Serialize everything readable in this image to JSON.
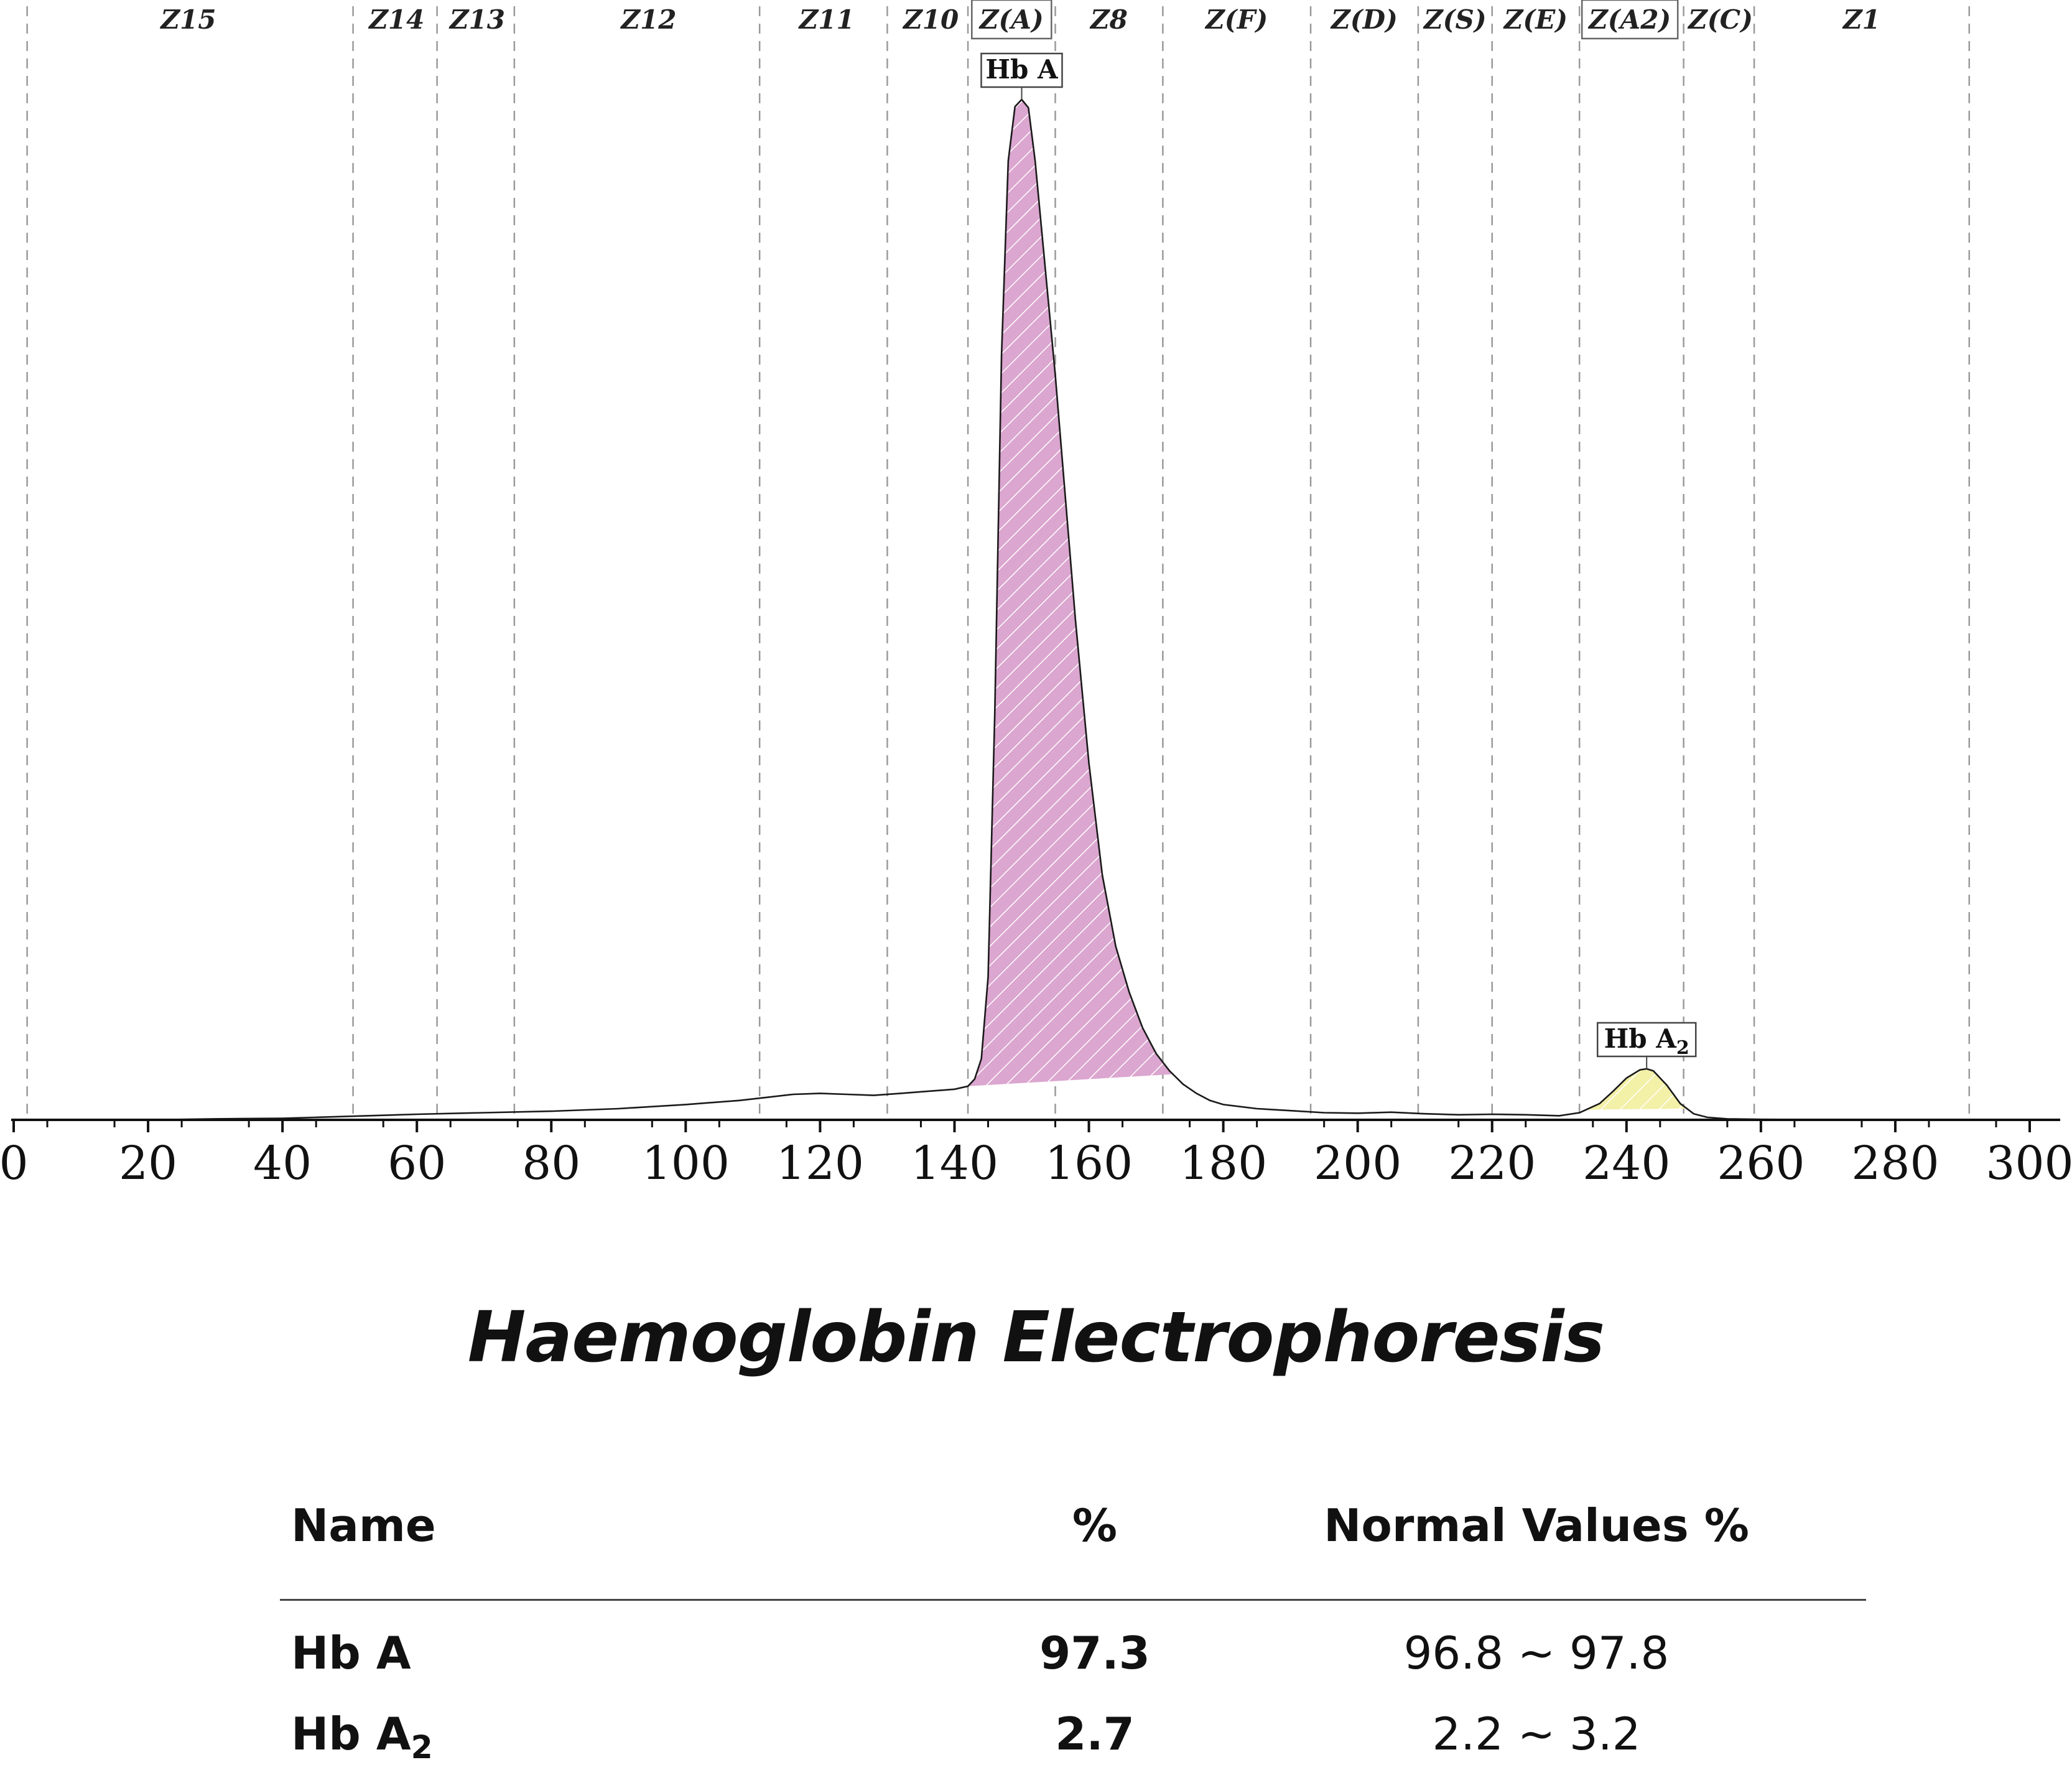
{
  "chart_data": {
    "type": "area",
    "title": "",
    "xlabel": "",
    "ylabel": "",
    "xlim": [
      0,
      300
    ],
    "ylim": [
      0,
      100
    ],
    "x_ticks": [
      0,
      20,
      40,
      60,
      80,
      100,
      120,
      140,
      160,
      180,
      200,
      220,
      240,
      260,
      280,
      300
    ],
    "x_tick_labels": [
      "0",
      "20",
      "40",
      "60",
      "80",
      "100",
      "120",
      "140",
      "160",
      "180",
      "200",
      "220",
      "240",
      "260",
      "280",
      "300"
    ],
    "zone_boundaries": [
      2,
      50.5,
      63,
      74.5,
      111,
      130,
      142,
      155,
      171,
      193,
      209,
      220,
      233,
      248.5,
      259,
      291
    ],
    "zones": [
      {
        "label": "Z15",
        "x": 26,
        "boxed": false
      },
      {
        "label": "Z14",
        "x": 57,
        "boxed": false
      },
      {
        "label": "Z13",
        "x": 69,
        "boxed": false
      },
      {
        "label": "Z12",
        "x": 94.5,
        "boxed": false
      },
      {
        "label": "Z11",
        "x": 121,
        "boxed": false
      },
      {
        "label": "Z10",
        "x": 136.5,
        "boxed": false
      },
      {
        "label": "Z(A)",
        "x": 148.5,
        "boxed": true
      },
      {
        "label": "Z8",
        "x": 163,
        "boxed": false
      },
      {
        "label": "Z(F)",
        "x": 182,
        "boxed": false
      },
      {
        "label": "Z(D)",
        "x": 201,
        "boxed": false
      },
      {
        "label": "Z(S)",
        "x": 214.5,
        "boxed": false
      },
      {
        "label": "Z(E)",
        "x": 226.5,
        "boxed": false
      },
      {
        "label": "Z(A2)",
        "x": 240.5,
        "boxed": true
      },
      {
        "label": "Z(C)",
        "x": 254,
        "boxed": false
      },
      {
        "label": "Z1",
        "x": 275,
        "boxed": false
      }
    ],
    "trace": {
      "x": [
        0,
        20,
        30,
        40,
        50,
        60,
        70,
        80,
        90,
        100,
        108,
        112,
        116,
        120,
        124,
        128,
        132,
        136,
        140,
        142,
        143,
        144,
        145,
        146,
        147,
        148,
        149,
        150,
        151,
        152,
        153,
        154,
        155,
        156,
        157,
        158,
        159,
        160,
        162,
        164,
        166,
        168,
        170,
        172,
        174,
        176,
        178,
        180,
        185,
        190,
        195,
        200,
        205,
        210,
        215,
        220,
        225,
        230,
        233,
        236,
        238,
        240,
        242,
        243,
        244,
        246,
        248,
        250,
        252,
        255,
        260,
        280,
        300
      ],
      "y": [
        0,
        0,
        0.1,
        0.15,
        0.35,
        0.55,
        0.7,
        0.85,
        1.1,
        1.5,
        1.9,
        2.2,
        2.5,
        2.6,
        2.5,
        2.4,
        2.6,
        2.8,
        3,
        3.3,
        4,
        6,
        14,
        40,
        75,
        94,
        99.3,
        100,
        99.2,
        94,
        87,
        80,
        73,
        65,
        57,
        49,
        42,
        35,
        24,
        17,
        12.5,
        9,
        6.5,
        4.8,
        3.5,
        2.6,
        1.9,
        1.5,
        1.1,
        0.9,
        0.7,
        0.65,
        0.75,
        0.6,
        0.5,
        0.55,
        0.5,
        0.4,
        0.7,
        1.6,
        2.8,
        4.1,
        4.9,
        5,
        4.8,
        3.4,
        1.6,
        0.6,
        0.25,
        0.1,
        0.05,
        0,
        0
      ]
    },
    "peaks": [
      {
        "name": "Hb A",
        "label": "Hb A",
        "sub": "",
        "x_start": 142,
        "x_end": 172.5,
        "apex": 150,
        "fill": "#dba6cf"
      },
      {
        "name": "Hb A2",
        "label": "Hb A",
        "sub": "2",
        "x_start": 234,
        "x_end": 249,
        "apex": 243,
        "fill": "#f3f0a8"
      }
    ]
  },
  "report": {
    "title": "Haemoglobin Electrophoresis",
    "headers": {
      "name": "Name",
      "percent": "%",
      "normal": "Normal Values %"
    },
    "rows": [
      {
        "name": "Hb A",
        "sub": "",
        "percent": "97.3",
        "normal": "96.8 ~ 97.8"
      },
      {
        "name": "Hb A",
        "sub": "2",
        "percent": "2.7",
        "normal": "2.2 ~  3.2"
      }
    ]
  }
}
